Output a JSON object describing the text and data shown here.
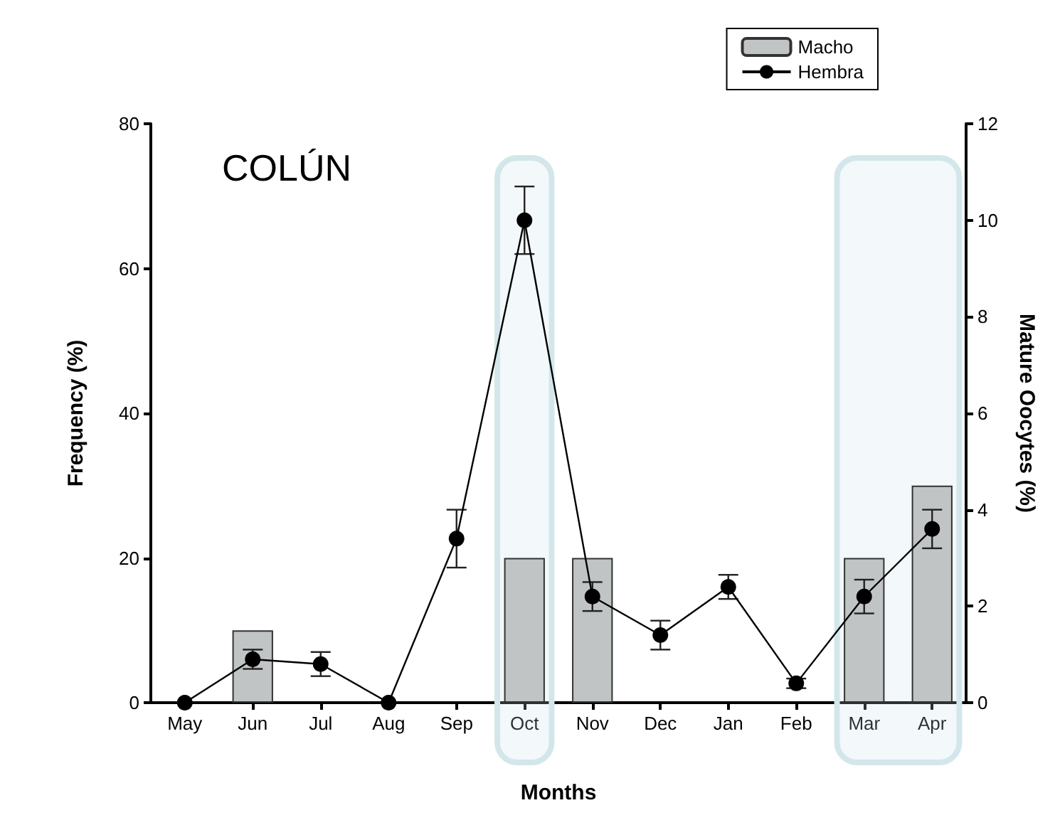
{
  "chart_data": {
    "type": "bar",
    "xlabel": "Months",
    "ylabel": "Frequency (%)",
    "y2label": "Mature Oocytes (%)",
    "annotations": [
      "COLÚN"
    ],
    "categories": [
      "May",
      "Jun",
      "Jul",
      "Aug",
      "Sep",
      "Oct",
      "Nov",
      "Dec",
      "Jan",
      "Feb",
      "Mar",
      "Apr"
    ],
    "series": [
      {
        "name": "Macho",
        "color": "#c0c4c4",
        "values": [
          0,
          10,
          0,
          0,
          0,
          20,
          20,
          0,
          0,
          0,
          20,
          30
        ]
      },
      {
        "name": "Hembra",
        "type": "line",
        "axis": "y2",
        "color": "#000000",
        "marker": "circle",
        "values": [
          0,
          0.9,
          0.8,
          0,
          3.4,
          10,
          2.2,
          1.4,
          2.4,
          0.4,
          2.2,
          3.6
        ],
        "errors": [
          null,
          [
            0.7,
            1.1
          ],
          [
            0.55,
            1.05
          ],
          null,
          [
            2.8,
            4.0
          ],
          [
            9.3,
            10.7
          ],
          [
            1.9,
            2.5
          ],
          [
            1.1,
            1.7
          ],
          [
            2.15,
            2.65
          ],
          [
            0.3,
            0.5
          ],
          [
            1.85,
            2.55
          ],
          [
            3.2,
            4.0
          ]
        ]
      }
    ],
    "ylim": [
      0,
      80
    ],
    "yticks": [
      0,
      20,
      40,
      60,
      80
    ],
    "y2lim": [
      0,
      12
    ],
    "y2ticks": [
      0,
      2,
      4,
      6,
      8,
      10,
      12
    ],
    "bands": [
      {
        "axis": "x",
        "from": "Oct",
        "to": "Oct",
        "color": "#d3e7eb"
      },
      {
        "axis": "x",
        "from": "Mar",
        "to": "Apr",
        "color": "#d3e7eb"
      }
    ],
    "grid": false,
    "legend": "top right"
  }
}
